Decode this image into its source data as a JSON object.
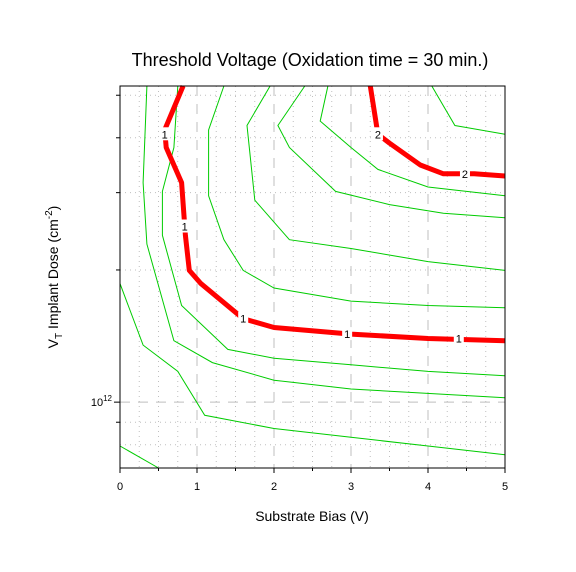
{
  "chart_data": {
    "type": "line",
    "title": "Threshold Voltage (Oxidation time = 30 min.)",
    "xlabel": "Substrate Bias (V)",
    "ylabel": {
      "main": "V",
      "sub": "T",
      "rest": " Implant Dose (cm",
      "sup": "-2",
      "end": ")"
    },
    "xlim": [
      0,
      5
    ],
    "ylim_log10": [
      11.85,
      12.72
    ],
    "x_ticks": [
      "0",
      "1",
      "2",
      "3",
      "4",
      "5"
    ],
    "y_tick_label": {
      "base": "10",
      "exponent": "12",
      "value": 1000000000000.0
    },
    "grid": true,
    "colors": {
      "highlight": "#ff0000",
      "contour": "#00cc00",
      "grid": "#bfbfbf"
    },
    "highlight_series": [
      {
        "level_label": "1",
        "points": [
          [
            0.82,
            12.72
          ],
          [
            0.58,
            12.62
          ],
          [
            0.6,
            12.58
          ],
          [
            0.8,
            12.5
          ],
          [
            0.85,
            12.38
          ],
          [
            0.9,
            12.3
          ],
          [
            1.05,
            12.27
          ],
          [
            1.6,
            12.19
          ],
          [
            2.0,
            12.17
          ],
          [
            3.0,
            12.155
          ],
          [
            4.0,
            12.145
          ],
          [
            5.0,
            12.14
          ]
        ],
        "label_positions": [
          [
            0.58,
            12.61
          ],
          [
            0.84,
            12.4
          ],
          [
            1.6,
            12.19
          ],
          [
            2.95,
            12.155
          ],
          [
            4.4,
            12.145
          ]
        ]
      },
      {
        "level_label": "2",
        "points": [
          [
            3.25,
            12.72
          ],
          [
            3.35,
            12.61
          ],
          [
            3.5,
            12.59
          ],
          [
            3.9,
            12.54
          ],
          [
            4.2,
            12.52
          ],
          [
            4.6,
            12.52
          ],
          [
            5.0,
            12.515
          ]
        ],
        "label_positions": [
          [
            3.35,
            12.61
          ],
          [
            4.48,
            12.52
          ]
        ]
      }
    ],
    "contour_series": [
      {
        "points": [
          [
            0,
            11.9
          ],
          [
            0.5,
            11.85
          ]
        ]
      },
      {
        "points": [
          [
            0,
            12.27
          ],
          [
            0.3,
            12.13
          ],
          [
            0.75,
            12.07
          ],
          [
            1.1,
            11.97
          ],
          [
            2.0,
            11.94
          ],
          [
            3.0,
            11.92
          ],
          [
            4.0,
            11.9
          ],
          [
            5.0,
            11.88
          ]
        ]
      },
      {
        "points": [
          [
            0.35,
            12.72
          ],
          [
            0.3,
            12.5
          ],
          [
            0.35,
            12.36
          ],
          [
            0.7,
            12.14
          ],
          [
            1.2,
            12.09
          ],
          [
            2.0,
            12.05
          ],
          [
            3.0,
            12.03
          ],
          [
            5.0,
            12.01
          ]
        ]
      },
      {
        "points": [
          [
            0.75,
            12.72
          ],
          [
            0.7,
            12.58
          ],
          [
            0.55,
            12.48
          ],
          [
            0.55,
            12.38
          ],
          [
            0.8,
            12.22
          ],
          [
            1.4,
            12.12
          ],
          [
            2.0,
            12.1
          ],
          [
            3.0,
            12.085
          ],
          [
            4.0,
            12.07
          ],
          [
            5.0,
            12.06
          ]
        ]
      },
      {
        "points": [
          [
            1.35,
            12.72
          ],
          [
            1.15,
            12.62
          ],
          [
            1.15,
            12.47
          ],
          [
            1.35,
            12.37
          ],
          [
            1.6,
            12.3
          ],
          [
            2.0,
            12.26
          ],
          [
            3.0,
            12.23
          ],
          [
            4.0,
            12.22
          ],
          [
            5.0,
            12.215
          ]
        ]
      },
      {
        "points": [
          [
            1.95,
            12.72
          ],
          [
            1.65,
            12.63
          ],
          [
            1.75,
            12.46
          ],
          [
            2.2,
            12.37
          ],
          [
            3.0,
            12.35
          ],
          [
            4.0,
            12.32
          ],
          [
            5.0,
            12.3
          ]
        ]
      },
      {
        "points": [
          [
            2.4,
            12.72
          ],
          [
            2.05,
            12.63
          ],
          [
            2.2,
            12.58
          ],
          [
            2.8,
            12.48
          ],
          [
            3.5,
            12.45
          ],
          [
            4.2,
            12.43
          ],
          [
            5.0,
            12.42
          ]
        ]
      },
      {
        "points": [
          [
            2.7,
            12.72
          ],
          [
            2.6,
            12.64
          ],
          [
            3.0,
            12.58
          ],
          [
            3.35,
            12.53
          ],
          [
            4.0,
            12.49
          ],
          [
            5.0,
            12.47
          ]
        ]
      },
      {
        "points": [
          [
            4.05,
            12.72
          ],
          [
            4.35,
            12.63
          ],
          [
            5.0,
            12.61
          ]
        ]
      }
    ]
  }
}
